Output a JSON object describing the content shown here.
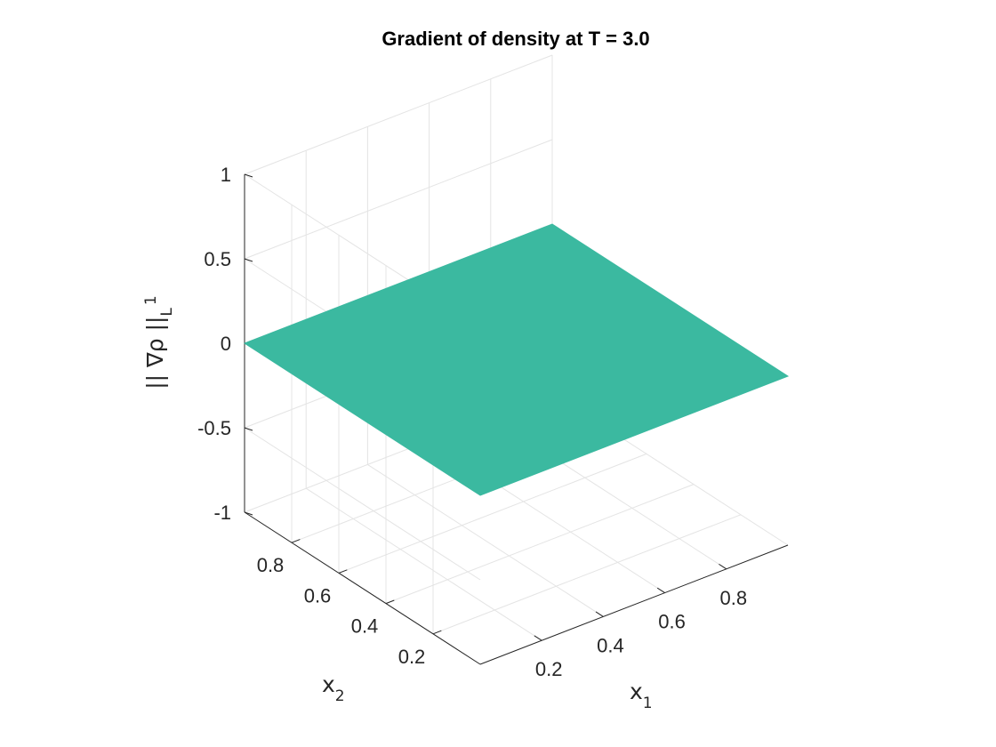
{
  "chart_data": {
    "type": "surface",
    "title": "Gradient of density at T = 3.0",
    "x_label": {
      "base": "x",
      "sub": "1"
    },
    "y_label": {
      "base": "x",
      "sub": "2"
    },
    "z_label": {
      "pre": "|| ∇ρ ||",
      "sub": "L",
      "sup": "1"
    },
    "x_ticks": [
      "0.2",
      "0.4",
      "0.6",
      "0.8"
    ],
    "y_ticks": [
      "0.2",
      "0.4",
      "0.6",
      "0.8"
    ],
    "z_ticks": [
      "-1",
      "-0.5",
      "0",
      "0.5",
      "1"
    ],
    "x_tick_values": [
      0.2,
      0.4,
      0.6,
      0.8
    ],
    "y_tick_values": [
      0.2,
      0.4,
      0.6,
      0.8
    ],
    "z_tick_values": [
      -1,
      -0.5,
      0,
      0.5,
      1
    ],
    "xlim": [
      0,
      1
    ],
    "ylim": [
      0,
      1
    ],
    "zlim": [
      -1,
      1
    ],
    "grid": true,
    "view": "3D isometric (azimuth -45°, elevation ~30°)",
    "surface": {
      "x": [
        0,
        1
      ],
      "y": [
        0,
        1
      ],
      "z": [
        [
          0,
          0
        ],
        [
          0,
          0
        ]
      ],
      "color": "#3bb9a0"
    }
  },
  "colors": {
    "surface": "#3bb9a0",
    "grid": "#e4e4e4",
    "axis": "#262626",
    "text": "#262626",
    "background": "#ffffff"
  }
}
